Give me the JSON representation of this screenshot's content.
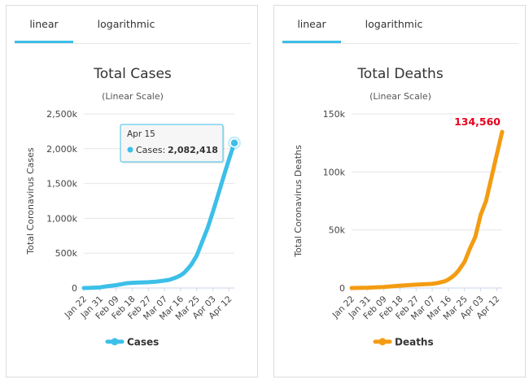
{
  "tabs": {
    "linear": "linear",
    "logarithmic": "logarithmic"
  },
  "chart_data": [
    {
      "type": "area",
      "title": "Total Cases",
      "subtitle": "(Linear Scale)",
      "ylabel": "Total Coronavirus Cases",
      "ylim": [
        0,
        2500000
      ],
      "yticks": [
        0,
        500000,
        1000000,
        1500000,
        2000000,
        2500000
      ],
      "ytick_labels": [
        "0",
        "500k",
        "1,000k",
        "1,500k",
        "2,000k",
        "2,500k"
      ],
      "xtick_labels": [
        "Jan 22",
        "Jan 31",
        "Feb 09",
        "Feb 18",
        "Feb 27",
        "Mar 07",
        "Mar 16",
        "Mar 25",
        "Apr 03",
        "Apr 12"
      ],
      "x_start": "Jan 22",
      "x_end": "Apr 15",
      "color": "#3cbfe8",
      "series": [
        {
          "name": "Cases",
          "x": [
            "Jan 22",
            "Jan 26",
            "Jan 31",
            "Feb 04",
            "Feb 09",
            "Feb 13",
            "Feb 15",
            "Feb 18",
            "Feb 22",
            "Feb 27",
            "Mar 02",
            "Mar 07",
            "Mar 10",
            "Mar 14",
            "Mar 16",
            "Mar 18",
            "Mar 20",
            "Mar 22",
            "Mar 25",
            "Mar 28",
            "Mar 31",
            "Apr 03",
            "Apr 06",
            "Apr 09",
            "Apr 12",
            "Apr 15"
          ],
          "values": [
            555,
            2900,
            9900,
            24500,
            40500,
            60000,
            69000,
            75200,
            78600,
            83100,
            90300,
            105800,
            119100,
            157000,
            182600,
            219000,
            275000,
            337000,
            467600,
            663000,
            857000,
            1095000,
            1346000,
            1600000,
            1850000,
            2082418
          ]
        }
      ],
      "tooltip": {
        "date": "Apr 15",
        "series_label": "Cases:",
        "value": "2,082,418"
      },
      "legend": "Cases"
    },
    {
      "type": "area",
      "title": "Total Deaths",
      "subtitle": "(Linear Scale)",
      "ylabel": "Total Coronavirus Deaths",
      "ylim": [
        0,
        150000
      ],
      "yticks": [
        0,
        50000,
        100000,
        150000
      ],
      "ytick_labels": [
        "0",
        "50k",
        "100k",
        "150k"
      ],
      "xtick_labels": [
        "Jan 22",
        "Jan 31",
        "Feb 09",
        "Feb 18",
        "Feb 27",
        "Mar 07",
        "Mar 16",
        "Mar 25",
        "Apr 03",
        "Apr 12"
      ],
      "x_start": "Jan 22",
      "x_end": "Apr 15",
      "color": "#f39c12",
      "series": [
        {
          "name": "Deaths",
          "x": [
            "Jan 22",
            "Jan 31",
            "Feb 09",
            "Feb 18",
            "Feb 27",
            "Mar 07",
            "Mar 10",
            "Mar 14",
            "Mar 16",
            "Mar 18",
            "Mar 20",
            "Mar 22",
            "Mar 25",
            "Mar 28",
            "Mar 31",
            "Apr 03",
            "Apr 06",
            "Apr 09",
            "Apr 12",
            "Apr 15"
          ],
          "values": [
            17,
            259,
            910,
            2010,
            2860,
            3600,
            4300,
            5800,
            7300,
            9400,
            12000,
            15600,
            22500,
            34000,
            44000,
            63000,
            75000,
            95000,
            115000,
            134560
          ]
        }
      ],
      "annotation": "134,560",
      "legend": "Deaths"
    }
  ]
}
